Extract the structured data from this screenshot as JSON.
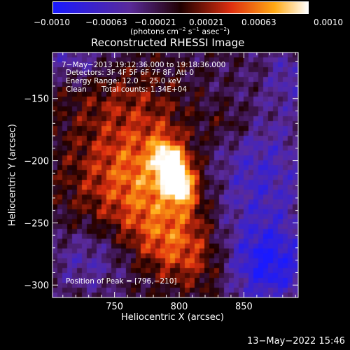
{
  "colorbar": {
    "tick_labels": [
      "−0.0010",
      "−0.00063",
      "−0.00021",
      "0.00021",
      "0.00063",
      "0.0010"
    ],
    "units_prefix": "(photons cm",
    "units_exp1": "−2",
    "units_mid": " s",
    "units_exp2": "−1",
    "units_mid2": " asec",
    "units_exp3": "−2",
    "units_suffix": ")"
  },
  "overlay": {
    "time_range": "7−May−2013 19:12:36.000 to 19:18:36.000",
    "detectors": "Detectors: 3F 4F 5F 6F 7F 8F, Att 0",
    "energy": "Energy Range: 12.0 − 25.0 keV",
    "clean_label": "Clean",
    "total_counts": "Total counts: 1.34E+04",
    "peak": "Position of Peak = [796,−210]"
  },
  "footer": {
    "timestamp": "13−May−2022 15:46"
  },
  "chart_data": {
    "type": "heatmap",
    "title": "Reconstructed RHESSI Image",
    "xlabel": "Heliocentric X (arcsec)",
    "ylabel": "Heliocentric Y (arcsec)",
    "xlim": [
      702,
      892
    ],
    "ylim": [
      -310,
      -113
    ],
    "x_ticks": [
      750,
      800,
      850
    ],
    "x_tick_labels": [
      "750",
      "800",
      "850"
    ],
    "y_ticks": [
      -300,
      -250,
      -200,
      -150
    ],
    "y_tick_labels": [
      "−300",
      "−250",
      "−200",
      "−150"
    ],
    "colorbar_range": [
      -0.001,
      0.001
    ],
    "colors": {
      "min": "#1a1aff",
      "neg": "#5a2a9a",
      "zero": "#200000",
      "mid": "#e03010",
      "max": "#ffffff"
    },
    "peak_position": [
      796,
      -210
    ],
    "components": [
      {
        "x": 796,
        "y": -210,
        "sx": 8,
        "sy": 16,
        "amp": 0.00135,
        "rot": -0.35
      },
      {
        "x": 786,
        "y": -222,
        "sx": 28,
        "sy": 44,
        "amp": 0.0005,
        "rot": -0.3
      },
      {
        "x": 752,
        "y": -212,
        "sx": 35,
        "sy": 32,
        "amp": 0.0004,
        "rot": 0.0
      },
      {
        "x": 800,
        "y": -272,
        "sx": 28,
        "sy": 18,
        "amp": 0.00042,
        "rot": 0.6
      },
      {
        "x": 752,
        "y": -148,
        "sx": 38,
        "sy": 22,
        "amp": 0.00022,
        "rot": 0.0
      },
      {
        "x": 840,
        "y": -170,
        "sx": 14,
        "sy": 12,
        "amp": 0.00025,
        "rot": 0.0
      },
      {
        "x": 860,
        "y": -215,
        "sx": 30,
        "sy": 40,
        "amp": -0.00045,
        "rot": 0.0
      },
      {
        "x": 868,
        "y": -285,
        "sx": 22,
        "sy": 22,
        "amp": -0.0007,
        "rot": 0.0
      },
      {
        "x": 730,
        "y": -280,
        "sx": 22,
        "sy": 18,
        "amp": -0.00032,
        "rot": 0.0
      },
      {
        "x": 720,
        "y": -118,
        "sx": 18,
        "sy": 14,
        "amp": -0.00035,
        "rot": 0.0
      },
      {
        "x": 885,
        "y": -130,
        "sx": 12,
        "sy": 18,
        "amp": -0.0003,
        "rot": 0.0
      }
    ],
    "baseline": -0.00018
  }
}
